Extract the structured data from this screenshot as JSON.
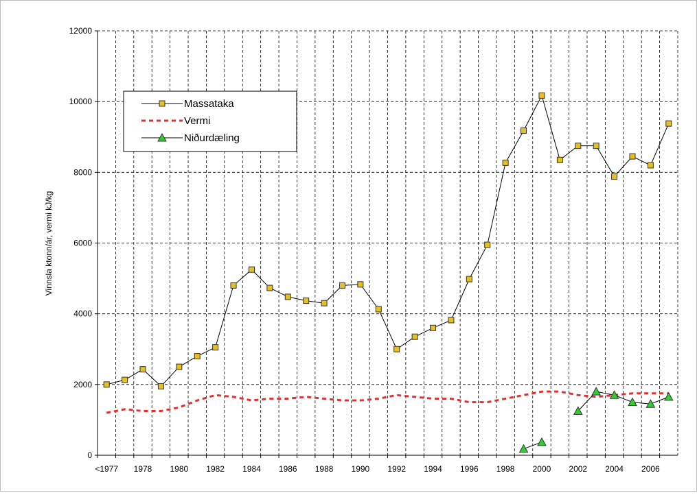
{
  "chart_data": {
    "type": "line",
    "ylabel": "Vinnsla ktonn/ár, vermi kJ/kg",
    "categories": [
      "<1977",
      null,
      "1978",
      null,
      "1980",
      null,
      "1982",
      null,
      "1984",
      null,
      "1986",
      null,
      "1988",
      null,
      "1990",
      null,
      "1992",
      null,
      "1994",
      null,
      "1996",
      null,
      "1998",
      null,
      "2000",
      null,
      "2002",
      null,
      "2004",
      null,
      "2006",
      null
    ],
    "ylim": [
      0,
      12000
    ],
    "yticks": [
      0,
      2000,
      4000,
      6000,
      8000,
      10000,
      12000
    ],
    "grid": true,
    "legend": "upper left",
    "series": [
      {
        "name": "Massataka",
        "color": "#000000",
        "marker_color": "#e6c020",
        "marker": "square",
        "values": [
          2000,
          2130,
          2430,
          1950,
          2500,
          2800,
          3050,
          4800,
          5250,
          4730,
          4480,
          4370,
          4300,
          4800,
          4830,
          4130,
          3000,
          3350,
          3600,
          3820,
          4980,
          5950,
          8270,
          9180,
          10170,
          8350,
          8750,
          8750,
          7880,
          8450,
          8200,
          9380
        ]
      },
      {
        "name": "Vermi",
        "color": "#e03030",
        "dashed": true,
        "values": [
          1200,
          1300,
          1250,
          1250,
          1350,
          1550,
          1700,
          1650,
          1550,
          1600,
          1600,
          1650,
          1600,
          1550,
          1550,
          1600,
          1700,
          1650,
          1600,
          1600,
          1500,
          1500,
          1600,
          1700,
          1800,
          1800,
          1700,
          1650,
          1700,
          1750,
          1750,
          1750
        ]
      },
      {
        "name": "Niðurdæling",
        "color": "#000000",
        "marker_color": "#33cc33",
        "marker": "triangle",
        "values": [
          null,
          null,
          null,
          null,
          null,
          null,
          null,
          null,
          null,
          null,
          null,
          null,
          null,
          null,
          null,
          null,
          null,
          null,
          null,
          null,
          null,
          null,
          null,
          180,
          370,
          null,
          1250,
          1800,
          1700,
          1500,
          1450,
          1650
        ]
      }
    ]
  }
}
